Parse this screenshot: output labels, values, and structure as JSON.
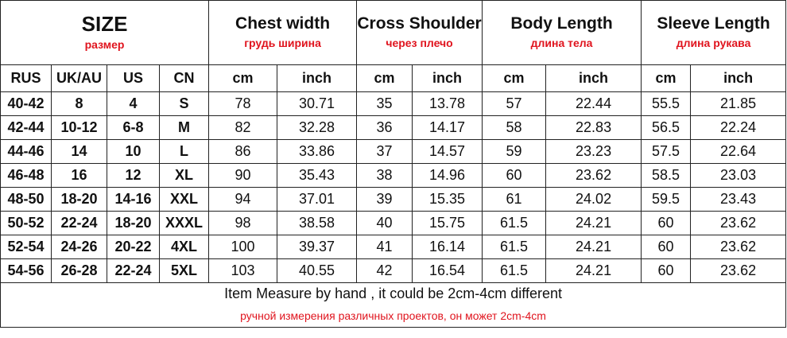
{
  "header": {
    "size_title": "SIZE",
    "size_sub": "размер",
    "groups": [
      {
        "title": "Chest width",
        "sub": "грудь ширина"
      },
      {
        "title": "Cross Shoulder",
        "sub": "через плечо"
      },
      {
        "title": "Body Length",
        "sub": "длина тела"
      },
      {
        "title": "Sleeve Length",
        "sub": "длина рукава"
      }
    ]
  },
  "units": [
    "RUS",
    "UK/AU",
    "US",
    "CN",
    "cm",
    "inch",
    "cm",
    "inch",
    "cm",
    "inch",
    "cm",
    "inch"
  ],
  "rows": [
    [
      "40-42",
      "8",
      "4",
      "S",
      "78",
      "30.71",
      "35",
      "13.78",
      "57",
      "22.44",
      "55.5",
      "21.85"
    ],
    [
      "42-44",
      "10-12",
      "6-8",
      "M",
      "82",
      "32.28",
      "36",
      "14.17",
      "58",
      "22.83",
      "56.5",
      "22.24"
    ],
    [
      "44-46",
      "14",
      "10",
      "L",
      "86",
      "33.86",
      "37",
      "14.57",
      "59",
      "23.23",
      "57.5",
      "22.64"
    ],
    [
      "46-48",
      "16",
      "12",
      "XL",
      "90",
      "35.43",
      "38",
      "14.96",
      "60",
      "23.62",
      "58.5",
      "23.03"
    ],
    [
      "48-50",
      "18-20",
      "14-16",
      "XXL",
      "94",
      "37.01",
      "39",
      "15.35",
      "61",
      "24.02",
      "59.5",
      "23.43"
    ],
    [
      "50-52",
      "22-24",
      "18-20",
      "XXXL",
      "98",
      "38.58",
      "40",
      "15.75",
      "61.5",
      "24.21",
      "60",
      "23.62"
    ],
    [
      "52-54",
      "24-26",
      "20-22",
      "4XL",
      "100",
      "39.37",
      "41",
      "16.14",
      "61.5",
      "24.21",
      "60",
      "23.62"
    ],
    [
      "54-56",
      "26-28",
      "22-24",
      "5XL",
      "103",
      "40.55",
      "42",
      "16.54",
      "61.5",
      "24.21",
      "60",
      "23.62"
    ]
  ],
  "footer": {
    "note_en": "Item Measure by hand , it could be 2cm-4cm different",
    "note_ru": "ручной измерения различных проектов, он может 2cm-4cm"
  },
  "colors": {
    "accent_red": "#e0141e",
    "border": "#222222",
    "text": "#111111"
  }
}
